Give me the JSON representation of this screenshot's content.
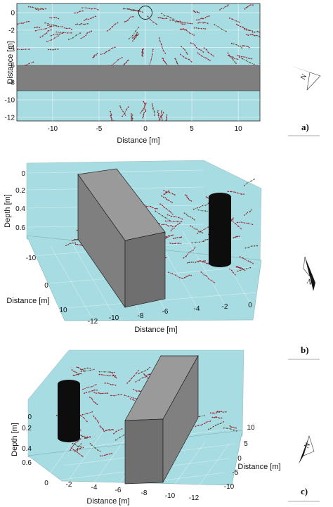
{
  "colors": {
    "domain": "#a6dce2",
    "barrier": "#7f7f7f",
    "borehole": "#0d0d0d",
    "fracture_green": "#1f8a3a",
    "fracture_red": "#9b1b2a",
    "frame": "#222222"
  },
  "panel_labels": [
    "a)",
    "b)",
    "c)"
  ],
  "north_label": "N",
  "chart_data": [
    {
      "type": "scatter",
      "view": "plan (top view)",
      "xlabel": "Distance [m]",
      "ylabel": "Distance [m]",
      "xlim": [
        -12.5,
        12.5
      ],
      "ylim": [
        -12.5,
        0.8
      ],
      "xticks": [
        "-10",
        "-5",
        "0",
        "5",
        "10"
      ],
      "yticks": [
        "0",
        "-2",
        "-4",
        "-6",
        "-8",
        "-10",
        "-12"
      ],
      "grid": true,
      "barrier_y_range": [
        -9.5,
        -6
      ],
      "borehole_center": [
        0,
        0
      ],
      "fracture_zone_near": [
        [
          -12,
          0
        ],
        [
          12,
          -6
        ]
      ],
      "fracture_zone_far": [
        [
          -4,
          -12
        ],
        [
          3,
          -9.5
        ]
      ]
    },
    {
      "type": "scatter",
      "view": "3D oblique",
      "xlabel": "Distance [m]",
      "ylabel": "Distance [m]",
      "zlabel": "Depth [m]",
      "xticks": [
        "-12",
        "-10",
        "-8",
        "-6",
        "-4",
        "-2",
        "0"
      ],
      "yticks": [
        "10",
        "0",
        "-10"
      ],
      "zticks": [
        "0",
        "0.2",
        "0.4",
        "0.6"
      ],
      "grid": true
    },
    {
      "type": "scatter",
      "view": "3D oblique (reverse)",
      "xlabel": "Distance [m]",
      "ylabel": "Distance [m]",
      "zlabel": "Depth [m]",
      "xticks": [
        "0",
        "-2",
        "-4",
        "-6",
        "-8",
        "-10",
        "-12"
      ],
      "yticks": [
        "10",
        "5",
        "0",
        "-5",
        "-10"
      ],
      "zticks": [
        "0",
        "0.2",
        "0.4",
        "0.6"
      ],
      "grid": true
    }
  ]
}
